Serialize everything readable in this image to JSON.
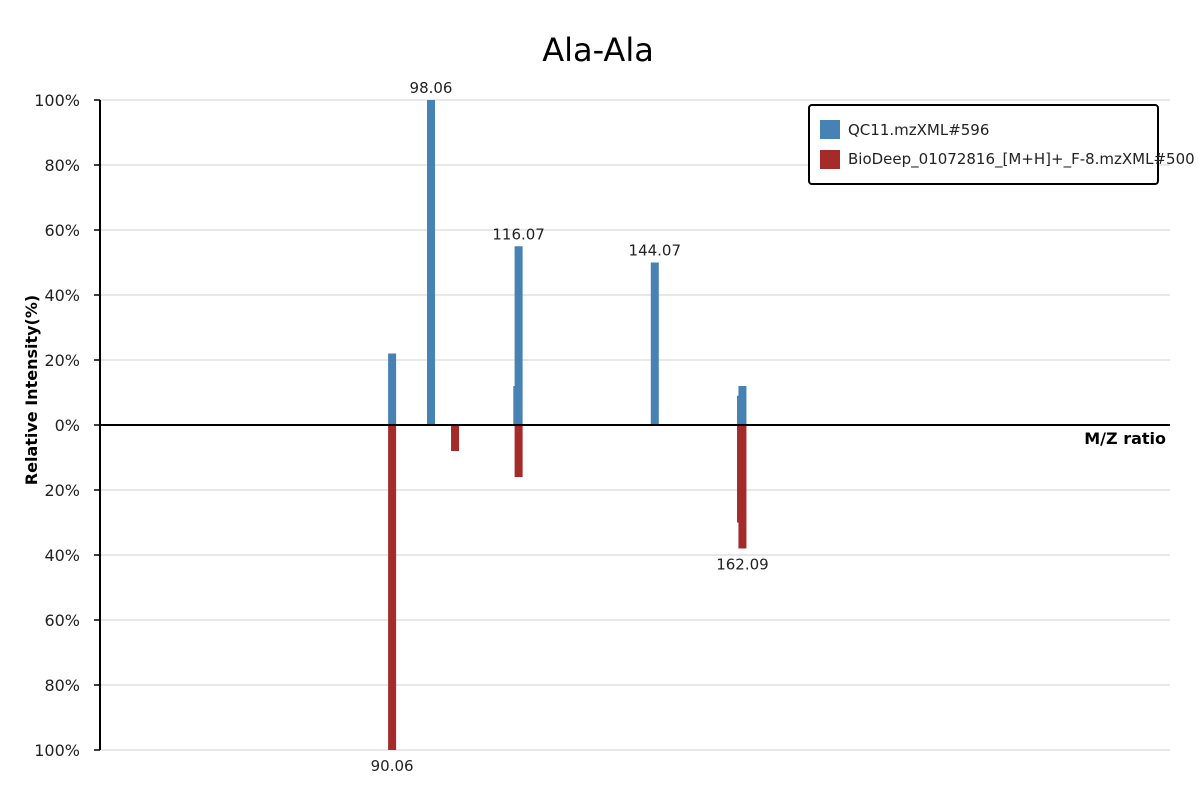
{
  "chart_data": {
    "type": "bar",
    "title": "Ala-Ala",
    "xlabel": "M/Z ratio",
    "ylabel": "Relative Intensity(%)",
    "ylim": [
      -100,
      100
    ],
    "y_ticks": [
      "100%",
      "80%",
      "60%",
      "40%",
      "20%",
      "0%",
      "20%",
      "40%",
      "60%",
      "80%",
      "100%"
    ],
    "grid": true,
    "legend_position": "top-right",
    "series": [
      {
        "name": "QC11.mzXML#596",
        "color": "#4682b4",
        "direction": "up",
        "peaks": [
          {
            "mz": 90.06,
            "intensity": 22
          },
          {
            "mz": 98.06,
            "intensity": 100,
            "label": "98.06"
          },
          {
            "mz": 115.8,
            "intensity": 12
          },
          {
            "mz": 116.07,
            "intensity": 55,
            "label": "116.07"
          },
          {
            "mz": 144.07,
            "intensity": 50,
            "label": "144.07"
          },
          {
            "mz": 161.8,
            "intensity": 9
          },
          {
            "mz": 162.09,
            "intensity": 12
          }
        ]
      },
      {
        "name": "BioDeep_01072816_[M+H]+_F-8.mzXML#500",
        "color": "#a52a2a",
        "direction": "down",
        "peaks": [
          {
            "mz": 90.06,
            "intensity": 100,
            "label": "90.06"
          },
          {
            "mz": 103.0,
            "intensity": 8
          },
          {
            "mz": 116.07,
            "intensity": 16
          },
          {
            "mz": 161.8,
            "intensity": 30
          },
          {
            "mz": 162.09,
            "intensity": 38,
            "label": "162.09"
          }
        ]
      }
    ]
  }
}
